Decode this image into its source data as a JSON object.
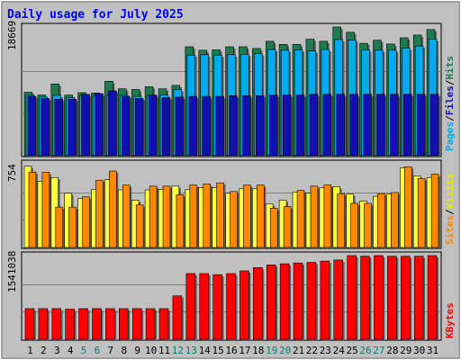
{
  "chart_data": {
    "type": "bar",
    "title": "Daily usage for July 2025",
    "days": [
      "1",
      "2",
      "3",
      "4",
      "5",
      "6",
      "7",
      "8",
      "9",
      "10",
      "11",
      "12",
      "13",
      "14",
      "15",
      "16",
      "17",
      "18",
      "19",
      "20",
      "21",
      "22",
      "23",
      "24",
      "25",
      "26",
      "27",
      "28",
      "29",
      "30",
      "31"
    ],
    "weekend_days": [
      "5",
      "6",
      "12",
      "13",
      "19",
      "20",
      "26",
      "27"
    ],
    "panels": {
      "hits_files_pages": {
        "max_label": "18669",
        "ymax": 18669,
        "series": [
          {
            "name": "Hits",
            "color": "#1f7a50",
            "values": [
              9200,
              8800,
              10400,
              8800,
              9150,
              9100,
              10800,
              9700,
              9600,
              10000,
              9700,
              10200,
              15800,
              15300,
              15350,
              15800,
              15800,
              15550,
              16600,
              16150,
              16150,
              16900,
              16600,
              18669,
              17900,
              16300,
              16750,
              16200,
              17100,
              17500,
              18300
            ]
          },
          {
            "name": "Files",
            "color": "#00aaee",
            "values": [
              8750,
              8500,
              8750,
              8450,
              8750,
              8750,
              8750,
              8750,
              8600,
              8700,
              8800,
              9600,
              14600,
              14650,
              14600,
              14650,
              14700,
              14800,
              15400,
              15300,
              15350,
              15200,
              15400,
              16850,
              16800,
              15350,
              15300,
              15300,
              15600,
              15900,
              16900
            ]
          },
          {
            "name": "Pages",
            "color": "#1010b0",
            "values": [
              8600,
              8300,
              8200,
              8200,
              8900,
              9000,
              9400,
              8600,
              8300,
              8800,
              8400,
              8500,
              8600,
              8600,
              8600,
              8700,
              8700,
              8700,
              8800,
              8800,
              8800,
              8900,
              8900,
              8900,
              8900,
              8900,
              8900,
              8900,
              8900,
              8900,
              8900
            ]
          }
        ],
        "axis_title_parts": [
          "Pages",
          "/",
          "Files",
          "/",
          "Hits"
        ]
      },
      "visits_sites": {
        "max_label": "754",
        "ymax": 754,
        "series": [
          {
            "name": "Visits",
            "color": "#ffff40",
            "values": [
              754,
              615,
              650,
              505,
              455,
              540,
              630,
              535,
              440,
              535,
              540,
              570,
              540,
              555,
              555,
              505,
              545,
              545,
              405,
              440,
              515,
              505,
              555,
              565,
              495,
              430,
              475,
              495,
              740,
              665,
              650
            ]
          },
          {
            "name": "Sites",
            "color": "#ff8800",
            "values": [
              700,
              700,
              375,
              375,
              470,
              625,
              710,
              580,
              395,
              570,
              570,
              490,
              580,
              590,
              600,
              520,
              580,
              580,
              365,
              380,
              530,
              570,
              580,
              500,
              410,
              410,
              500,
              510,
              750,
              640,
              680
            ]
          }
        ],
        "axis_title_parts": [
          "Sites",
          "/",
          "Visits"
        ]
      },
      "kbytes": {
        "max_label": "1541038",
        "ymax": 1541038,
        "series": [
          {
            "name": "KBytes",
            "color": "#ff0000",
            "values": [
              565000,
              565000,
              565000,
              555000,
              565000,
              565000,
              565000,
              565000,
              565000,
              565000,
              565000,
              800000,
              1210000,
              1210000,
              1190000,
              1210000,
              1260000,
              1320000,
              1370000,
              1390000,
              1405000,
              1415000,
              1440000,
              1460000,
              1541038,
              1530000,
              1541038,
              1530000,
              1530000,
              1530000,
              1541038
            ]
          }
        ],
        "axis_title_parts": [
          "KBytes"
        ]
      }
    }
  },
  "colors": {
    "background": "#c0c0c0",
    "frame": "#000000",
    "title": "#0000ff",
    "weekday_label": "#000000",
    "weekend_label": "#008070",
    "hits": "#1f7a50",
    "files": "#00aaee",
    "pages": "#1010b0",
    "visits": "#ffff40",
    "sites": "#ff8800",
    "kbytes": "#ff0000"
  }
}
